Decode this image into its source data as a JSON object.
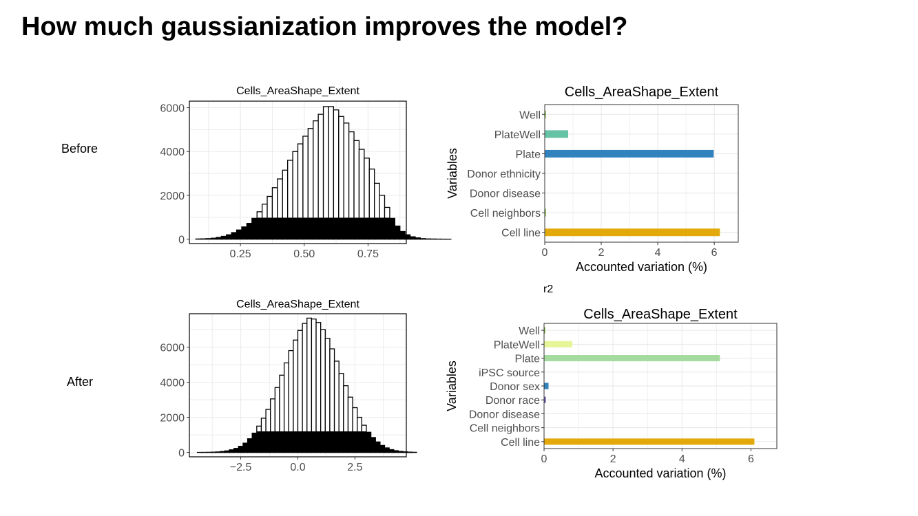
{
  "slide": {
    "title": "How much gaussianization improves the model?",
    "row_labels": [
      "Before",
      "After"
    ],
    "r2_label": "r2"
  },
  "chart_data": [
    {
      "type": "bar",
      "subtype": "histogram",
      "row": "Before",
      "title": "Cells_AreaShape_Extent",
      "xlabel": "",
      "ylabel": "",
      "xlim": [
        0.05,
        0.9
      ],
      "ylim": [
        -200,
        6300
      ],
      "xticks": [
        0.25,
        0.5,
        0.75
      ],
      "xtick_labels": [
        "0.25",
        "0.50",
        "0.75"
      ],
      "yticks": [
        0,
        2000,
        4000,
        6000
      ],
      "grid": true,
      "bin_start": 0.075,
      "bin_width": 0.02,
      "values": [
        10,
        15,
        25,
        45,
        80,
        130,
        200,
        300,
        420,
        560,
        720,
        950,
        1250,
        1600,
        1950,
        2350,
        2750,
        3150,
        3600,
        4000,
        4350,
        4700,
        5050,
        5400,
        5700,
        6050,
        6050,
        5900,
        5600,
        5300,
        4900,
        4500,
        4100,
        3700,
        3200,
        2550,
        2000,
        1450,
        950,
        600,
        350,
        200,
        110,
        60,
        25,
        12,
        8,
        4,
        2,
        1
      ],
      "floor_value": 980
    },
    {
      "type": "bar",
      "orientation": "horizontal",
      "row": "Before",
      "title": "Cells_AreaShape_Extent",
      "xlabel": "Accounted variation (%)",
      "ylabel": "Variables",
      "xlim": [
        0,
        6.85
      ],
      "xticks": [
        0,
        2,
        4,
        6
      ],
      "grid": true,
      "categories": [
        "Cell line",
        "Cell neighbors",
        "Donor disease",
        "Donor ethnicity",
        "Plate",
        "PlateWell",
        "Well"
      ],
      "values": [
        6.2,
        0.03,
        0,
        0,
        5.98,
        0.83,
        0.03
      ],
      "colors": [
        "#E3A90B",
        "#66A61E",
        "#9E9E9E",
        "#9E9E9E",
        "#3182BD",
        "#66C2A5",
        "#66A61E"
      ]
    },
    {
      "type": "bar",
      "subtype": "histogram",
      "row": "After",
      "title": "Cells_AreaShape_Extent",
      "xlabel": "",
      "ylabel": "",
      "xlim": [
        -4.75,
        4.75
      ],
      "ylim": [
        -250,
        7900
      ],
      "xticks": [
        -2.5,
        0,
        2.5
      ],
      "xtick_labels": [
        "−2.5",
        "0.0",
        "2.5"
      ],
      "yticks": [
        0,
        2000,
        4000,
        6000
      ],
      "grid": true,
      "bin_start": -4.4,
      "bin_width": 0.2,
      "values": [
        4,
        6,
        10,
        18,
        30,
        55,
        90,
        150,
        230,
        350,
        530,
        780,
        1100,
        1500,
        1950,
        2450,
        3050,
        3700,
        4400,
        5100,
        5800,
        6400,
        6950,
        7350,
        7650,
        7600,
        7400,
        7000,
        6500,
        5900,
        5200,
        4500,
        3800,
        3150,
        2550,
        2000,
        1550,
        1150,
        850,
        600,
        400,
        260,
        160,
        100,
        60,
        35,
        20,
        10
      ],
      "floor_value": 1200
    },
    {
      "type": "bar",
      "orientation": "horizontal",
      "row": "After",
      "title": "Cells_AreaShape_Extent",
      "xlabel": "Accounted variation (%)",
      "ylabel": "Variables",
      "xlim": [
        0,
        6.75
      ],
      "xticks": [
        0,
        2,
        4,
        6
      ],
      "grid": true,
      "categories": [
        "Cell line",
        "Cell neighbors",
        "Donor disease",
        "Donor race",
        "Donor sex",
        "iPSC source",
        "Plate",
        "PlateWell",
        "Well"
      ],
      "values": [
        6.1,
        0,
        0,
        0.05,
        0.13,
        0,
        5.1,
        0.82,
        0.03
      ],
      "colors": [
        "#E3A90B",
        "#9E9E9E",
        "#9E9E9E",
        "#6A51A3",
        "#3182BD",
        "#9E9E9E",
        "#A6DBA0",
        "#E6F598",
        "#66A61E"
      ]
    }
  ]
}
